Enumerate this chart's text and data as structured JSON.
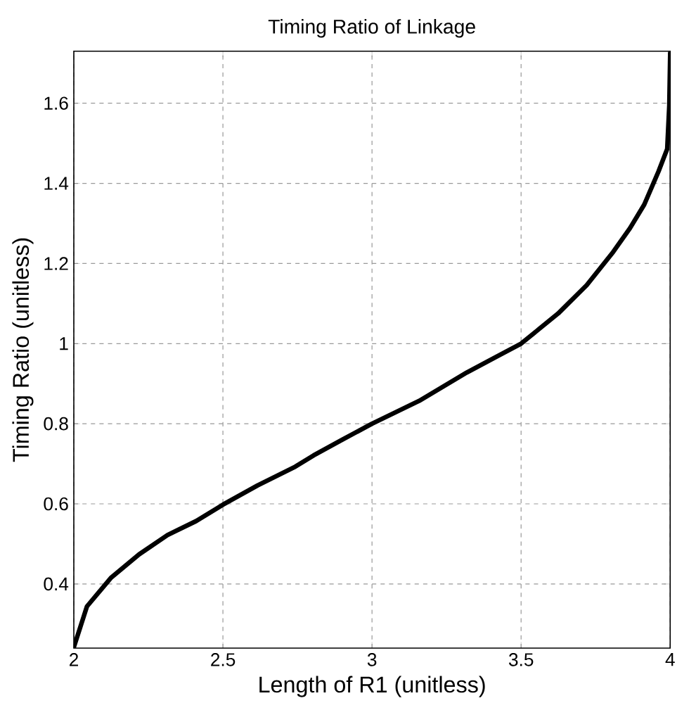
{
  "chart_data": {
    "type": "line",
    "title": "Timing Ratio of Linkage",
    "xlabel": "Length of R1 (unitless)",
    "ylabel": "Timing Ratio (unitless)",
    "xlim": [
      2,
      4
    ],
    "ylim": [
      0.24,
      1.73
    ],
    "xticks": [
      2,
      2.5,
      3,
      3.5,
      4
    ],
    "yticks": [
      0.4,
      0.6,
      0.8,
      1,
      1.2,
      1.4,
      1.6
    ],
    "grid": true,
    "series": [
      {
        "color": "#000000",
        "x": [
          2,
          2.044,
          2.124,
          2.219,
          2.314,
          2.41,
          2.5,
          2.616,
          2.743,
          2.804,
          2.9,
          3.0,
          3.158,
          3.318,
          3.5,
          3.624,
          3.72,
          3.809,
          3.865,
          3.913,
          3.961,
          3.99,
          3.997,
          4.0
        ],
        "values": [
          0.242,
          0.344,
          0.415,
          0.474,
          0.522,
          0.557,
          0.598,
          0.646,
          0.693,
          0.721,
          0.76,
          0.8,
          0.857,
          0.928,
          1.0,
          1.075,
          1.146,
          1.229,
          1.288,
          1.347,
          1.43,
          1.486,
          1.595,
          1.725
        ]
      }
    ]
  }
}
